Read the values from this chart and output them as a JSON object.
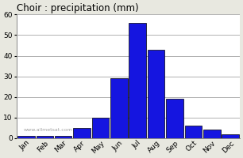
{
  "months": [
    "Jan",
    "Feb",
    "Mar",
    "Apr",
    "May",
    "Jun",
    "Jul",
    "Aug",
    "Sep",
    "Oct",
    "Nov",
    "Dec"
  ],
  "values": [
    1,
    1,
    1,
    5,
    10,
    29,
    56,
    43,
    19,
    6,
    4,
    2
  ],
  "bar_color": "#1515e0",
  "bar_edgecolor": "#000000",
  "bar_linewidth": 0.5,
  "title": "Choir : precipitation (mm)",
  "title_fontsize": 8.5,
  "ylim": [
    0,
    60
  ],
  "yticks": [
    0,
    10,
    20,
    30,
    40,
    50,
    60
  ],
  "tick_fontsize": 6.5,
  "background_color": "#e8e8e0",
  "plot_bg_color": "#ffffff",
  "grid_color": "#b0b0b0",
  "watermark": "www.allmetsat.com"
}
